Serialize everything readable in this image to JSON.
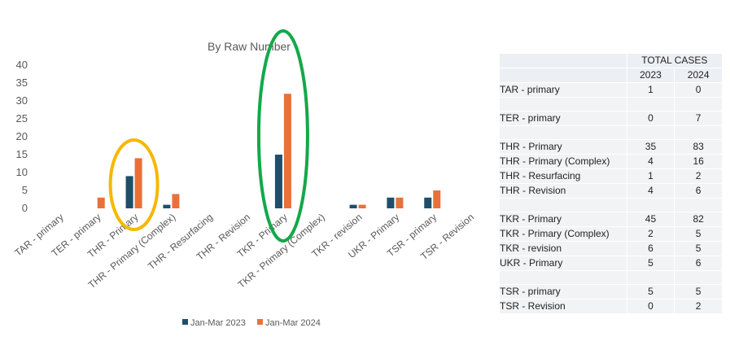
{
  "chart_data": {
    "type": "bar",
    "title": "By Raw Number",
    "categories": [
      "TAR - primary",
      "TER - primary",
      "THR - Primary",
      "THR - Primary (Complex)",
      "THR - Resurfacing",
      "THR - Revision",
      "TKR - Primary",
      "TKR - Primary (Complex)",
      "TKR - revision",
      "UKR - Primary",
      "TSR - primary",
      "TSR - Revision"
    ],
    "series": [
      {
        "name": "Jan-Mar 2023",
        "color": "#1f4e6b",
        "values": [
          0,
          0,
          9,
          1,
          0,
          0,
          15,
          0,
          1,
          3,
          3,
          0
        ]
      },
      {
        "name": "Jan-Mar 2024",
        "color": "#e8713a",
        "values": [
          0,
          3,
          14,
          4,
          0,
          0,
          32,
          0,
          1,
          3,
          5,
          0
        ]
      }
    ],
    "ylim": [
      0,
      40
    ],
    "yticks": [
      "0",
      "5",
      "10",
      "15",
      "20",
      "25",
      "30",
      "35",
      "40"
    ],
    "grid": false,
    "legend": "bottom",
    "annotations": [
      {
        "shape": "ellipse",
        "color": "#f5b800",
        "category": "THR - Primary"
      },
      {
        "shape": "ellipse",
        "color": "#14a84a",
        "category": "TKR - Primary"
      }
    ]
  },
  "table": {
    "header": "TOTAL CASES",
    "years": [
      "2023",
      "2024"
    ],
    "rows": [
      {
        "label": "TAR - primary",
        "v2023": "1",
        "v2024": "0"
      },
      {
        "label": "",
        "v2023": "",
        "v2024": ""
      },
      {
        "label": "TER - primary",
        "v2023": "0",
        "v2024": "7"
      },
      {
        "label": "",
        "v2023": "",
        "v2024": ""
      },
      {
        "label": "THR - Primary",
        "v2023": "35",
        "v2024": "83"
      },
      {
        "label": "THR - Primary (Complex)",
        "v2023": "4",
        "v2024": "16"
      },
      {
        "label": "THR - Resurfacing",
        "v2023": "1",
        "v2024": "2"
      },
      {
        "label": "THR - Revision",
        "v2023": "4",
        "v2024": "6"
      },
      {
        "label": "",
        "v2023": "",
        "v2024": ""
      },
      {
        "label": "TKR - Primary",
        "v2023": "45",
        "v2024": "82"
      },
      {
        "label": "TKR - Primary (Complex)",
        "v2023": "2",
        "v2024": "5"
      },
      {
        "label": "TKR - revision",
        "v2023": "6",
        "v2024": "5"
      },
      {
        "label": "UKR - Primary",
        "v2023": "5",
        "v2024": "6"
      },
      {
        "label": "",
        "v2023": "",
        "v2024": ""
      },
      {
        "label": "TSR - primary",
        "v2023": "5",
        "v2024": "5"
      },
      {
        "label": "TSR - Revision",
        "v2023": "0",
        "v2024": "2"
      }
    ]
  }
}
